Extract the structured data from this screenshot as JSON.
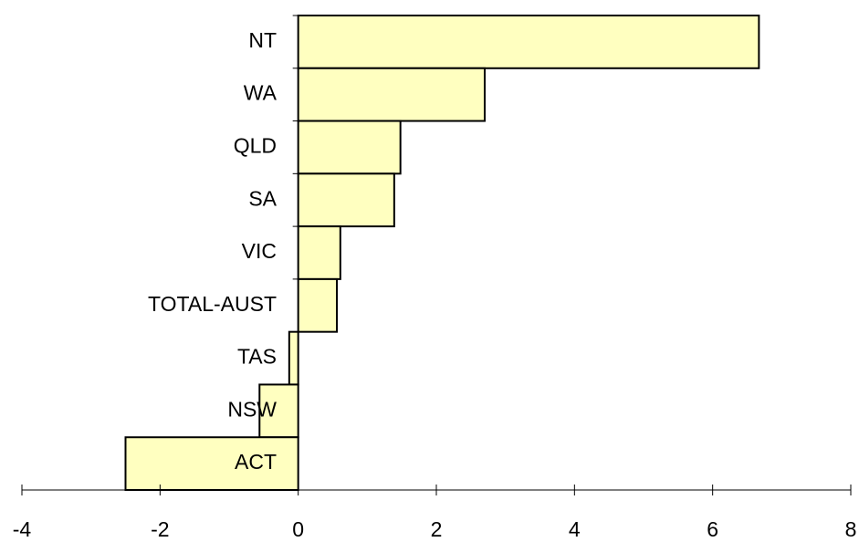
{
  "chart_data": {
    "type": "barh",
    "categories": [
      "NT",
      "WA",
      "QLD",
      "SA",
      "VIC",
      "TOTAL-AUST",
      "TAS",
      "NSW",
      "ACT"
    ],
    "values": [
      6.67,
      2.7,
      1.48,
      1.39,
      0.61,
      0.56,
      -0.13,
      -0.56,
      -2.5
    ],
    "color": "#ffffc0",
    "xlim": [
      -4,
      8
    ],
    "xticks": [
      -4,
      -2,
      0,
      2,
      4,
      6,
      8
    ],
    "grid": false
  }
}
